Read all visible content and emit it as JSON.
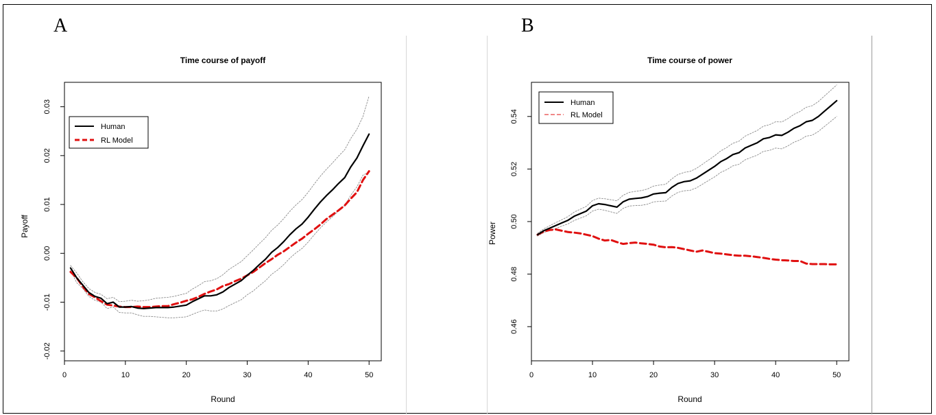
{
  "panels": [
    {
      "letter": "A"
    },
    {
      "letter": "B"
    }
  ],
  "chart_data": [
    {
      "type": "line",
      "title": "Time course of payoff",
      "xlabel": "Round",
      "ylabel": "Payoff",
      "xlim": [
        0,
        52
      ],
      "ylim": [
        -0.022,
        0.035
      ],
      "xticks": [
        0,
        10,
        20,
        30,
        40,
        50
      ],
      "yticks": [
        -0.02,
        -0.01,
        0.0,
        0.01,
        0.02,
        0.03
      ],
      "ytick_labels": [
        "-0.02",
        "-0.01",
        "0.00",
        "0.01",
        "0.02",
        "0.03"
      ],
      "legend_position": "upper-left",
      "x": [
        1,
        2,
        3,
        4,
        5,
        6,
        7,
        8,
        9,
        10,
        11,
        12,
        13,
        14,
        15,
        16,
        17,
        18,
        19,
        20,
        21,
        22,
        23,
        24,
        25,
        26,
        27,
        28,
        29,
        30,
        31,
        32,
        33,
        34,
        35,
        36,
        37,
        38,
        39,
        40,
        41,
        42,
        43,
        44,
        45,
        46,
        47,
        48,
        49,
        50
      ],
      "series": [
        {
          "name": "Human",
          "color": "#000000",
          "style": "solid",
          "values": [
            -0.003,
            -0.005,
            -0.0065,
            -0.008,
            -0.0088,
            -0.0092,
            -0.0103,
            -0.01,
            -0.011,
            -0.011,
            -0.0109,
            -0.0112,
            -0.0113,
            -0.0112,
            -0.0111,
            -0.0111,
            -0.0111,
            -0.011,
            -0.0108,
            -0.0106,
            -0.0099,
            -0.0093,
            -0.0087,
            -0.0087,
            -0.0085,
            -0.0079,
            -0.007,
            -0.0063,
            -0.0056,
            -0.0045,
            -0.0035,
            -0.0023,
            -0.0012,
            0.0002,
            0.0012,
            0.0024,
            0.0038,
            0.005,
            0.006,
            0.0074,
            0.009,
            0.0105,
            0.0118,
            0.013,
            0.0143,
            0.0155,
            0.0177,
            0.0195,
            0.022,
            0.0244
          ]
        },
        {
          "name": "RL Model",
          "color": "#e01010",
          "style": "dashed",
          "values": [
            -0.0038,
            -0.005,
            -0.0068,
            -0.0083,
            -0.009,
            -0.0098,
            -0.0105,
            -0.0107,
            -0.0109,
            -0.011,
            -0.011,
            -0.0109,
            -0.011,
            -0.011,
            -0.0109,
            -0.0108,
            -0.0108,
            -0.0104,
            -0.0101,
            -0.0097,
            -0.0094,
            -0.0089,
            -0.0083,
            -0.0078,
            -0.0074,
            -0.0067,
            -0.0063,
            -0.0057,
            -0.0052,
            -0.0045,
            -0.0038,
            -0.0029,
            -0.002,
            -0.0012,
            -0.0003,
            0.0004,
            0.0013,
            0.0022,
            0.003,
            0.004,
            0.0049,
            0.0059,
            0.007,
            0.0079,
            0.0088,
            0.0098,
            0.0112,
            0.0125,
            0.015,
            0.0168
          ]
        },
        {
          "name": "",
          "color": "#8a8a8a",
          "style": "dotted",
          "values": [
            -0.0025,
            -0.004,
            -0.0058,
            -0.0072,
            -0.008,
            -0.0084,
            -0.0093,
            -0.009,
            -0.0099,
            -0.0098,
            -0.0096,
            -0.0098,
            -0.0097,
            -0.0095,
            -0.0092,
            -0.0091,
            -0.009,
            -0.0088,
            -0.0085,
            -0.0082,
            -0.0073,
            -0.0066,
            -0.0058,
            -0.0056,
            -0.0052,
            -0.0044,
            -0.0033,
            -0.0025,
            -0.0017,
            -0.0005,
            0.0007,
            0.002,
            0.0032,
            0.0047,
            0.0058,
            0.0071,
            0.0086,
            0.0099,
            0.011,
            0.0125,
            0.0142,
            0.0158,
            0.0172,
            0.0185,
            0.0199,
            0.0212,
            0.0235,
            0.0254,
            0.028,
            0.0322
          ]
        },
        {
          "name": "",
          "color": "#8a8a8a",
          "style": "dotted",
          "values": [
            -0.0035,
            -0.006,
            -0.0072,
            -0.0088,
            -0.0096,
            -0.01,
            -0.0113,
            -0.011,
            -0.0121,
            -0.0122,
            -0.0122,
            -0.0126,
            -0.0129,
            -0.0129,
            -0.013,
            -0.0131,
            -0.0132,
            -0.0132,
            -0.0131,
            -0.013,
            -0.0125,
            -0.012,
            -0.0116,
            -0.0118,
            -0.0118,
            -0.0114,
            -0.0107,
            -0.0101,
            -0.0095,
            -0.0085,
            -0.0077,
            -0.0066,
            -0.0056,
            -0.0043,
            -0.0034,
            -0.0023,
            -0.001,
            0.0001,
            0.001,
            0.0023,
            0.0038,
            0.0052,
            0.0064,
            0.0075,
            0.0087,
            0.0098,
            0.0119,
            0.0136,
            0.016,
            0.0166
          ]
        }
      ]
    },
    {
      "type": "line",
      "title": "Time course of power",
      "xlabel": "Round",
      "ylabel": "Power",
      "xlim": [
        0,
        52
      ],
      "ylim": [
        0.447,
        0.553
      ],
      "xticks": [
        0,
        10,
        20,
        30,
        40,
        50
      ],
      "yticks": [
        0.46,
        0.48,
        0.5,
        0.52,
        0.54
      ],
      "ytick_labels": [
        "0.46",
        "0.48",
        "0.50",
        "0.52",
        "0.54"
      ],
      "legend_position": "upper-left",
      "x": [
        1,
        2,
        3,
        4,
        5,
        6,
        7,
        8,
        9,
        10,
        11,
        12,
        13,
        14,
        15,
        16,
        17,
        18,
        19,
        20,
        21,
        22,
        23,
        24,
        25,
        26,
        27,
        28,
        29,
        30,
        31,
        32,
        33,
        34,
        35,
        36,
        37,
        38,
        39,
        40,
        41,
        42,
        43,
        44,
        45,
        46,
        47,
        48,
        49,
        50
      ],
      "series": [
        {
          "name": "Human",
          "color": "#000000",
          "style": "solid",
          "values": [
            0.495,
            0.4965,
            0.4975,
            0.4985,
            0.4995,
            0.5005,
            0.502,
            0.503,
            0.504,
            0.506,
            0.5068,
            0.5065,
            0.506,
            0.5055,
            0.5075,
            0.5085,
            0.5088,
            0.509,
            0.5095,
            0.5105,
            0.5108,
            0.511,
            0.513,
            0.5145,
            0.5152,
            0.5155,
            0.5165,
            0.518,
            0.5195,
            0.521,
            0.5228,
            0.524,
            0.5255,
            0.5262,
            0.528,
            0.529,
            0.53,
            0.5315,
            0.532,
            0.533,
            0.5328,
            0.534,
            0.5355,
            0.5365,
            0.538,
            0.5385,
            0.54,
            0.542,
            0.544,
            0.546
          ]
        },
        {
          "name": "RL Model",
          "color": "#e01010",
          "style": "dashed",
          "values": [
            0.495,
            0.4962,
            0.4968,
            0.497,
            0.4965,
            0.496,
            0.4958,
            0.4955,
            0.495,
            0.4945,
            0.4935,
            0.4928,
            0.493,
            0.4922,
            0.4915,
            0.4918,
            0.492,
            0.4917,
            0.4915,
            0.4912,
            0.4905,
            0.4902,
            0.4903,
            0.49,
            0.4895,
            0.489,
            0.4885,
            0.489,
            0.4885,
            0.488,
            0.4878,
            0.4875,
            0.4872,
            0.487,
            0.487,
            0.4868,
            0.4865,
            0.4862,
            0.4858,
            0.4855,
            0.4853,
            0.4852,
            0.485,
            0.485,
            0.484,
            0.4838,
            0.4838,
            0.4838,
            0.4837,
            0.4837
          ]
        },
        {
          "name": "",
          "color": "#8a8a8a",
          "style": "dotted",
          "values": [
            0.4955,
            0.4972,
            0.4984,
            0.4996,
            0.5007,
            0.5019,
            0.5036,
            0.5047,
            0.5058,
            0.508,
            0.5089,
            0.5087,
            0.5083,
            0.5079,
            0.51,
            0.5111,
            0.5115,
            0.5118,
            0.5124,
            0.5135,
            0.5139,
            0.5142,
            0.5163,
            0.5179,
            0.5187,
            0.5191,
            0.5202,
            0.5218,
            0.5234,
            0.525,
            0.5269,
            0.5282,
            0.5298,
            0.5306,
            0.5325,
            0.5336,
            0.5347,
            0.5363,
            0.5369,
            0.538,
            0.5379,
            0.5392,
            0.5408,
            0.5419,
            0.5435,
            0.5441,
            0.5457,
            0.5478,
            0.5499,
            0.552
          ]
        },
        {
          "name": "",
          "color": "#8a8a8a",
          "style": "dotted",
          "values": [
            0.4945,
            0.4958,
            0.4966,
            0.4974,
            0.4983,
            0.4991,
            0.5004,
            0.5013,
            0.5022,
            0.504,
            0.5047,
            0.5043,
            0.5037,
            0.5031,
            0.505,
            0.5059,
            0.5061,
            0.5062,
            0.5066,
            0.5075,
            0.5077,
            0.5078,
            0.5097,
            0.5111,
            0.5117,
            0.5119,
            0.5128,
            0.5142,
            0.5156,
            0.517,
            0.5187,
            0.5198,
            0.5212,
            0.5218,
            0.5235,
            0.5244,
            0.5253,
            0.5267,
            0.5271,
            0.528,
            0.5277,
            0.5288,
            0.5302,
            0.5311,
            0.5325,
            0.5329,
            0.5343,
            0.5362,
            0.5381,
            0.54
          ]
        }
      ]
    }
  ]
}
